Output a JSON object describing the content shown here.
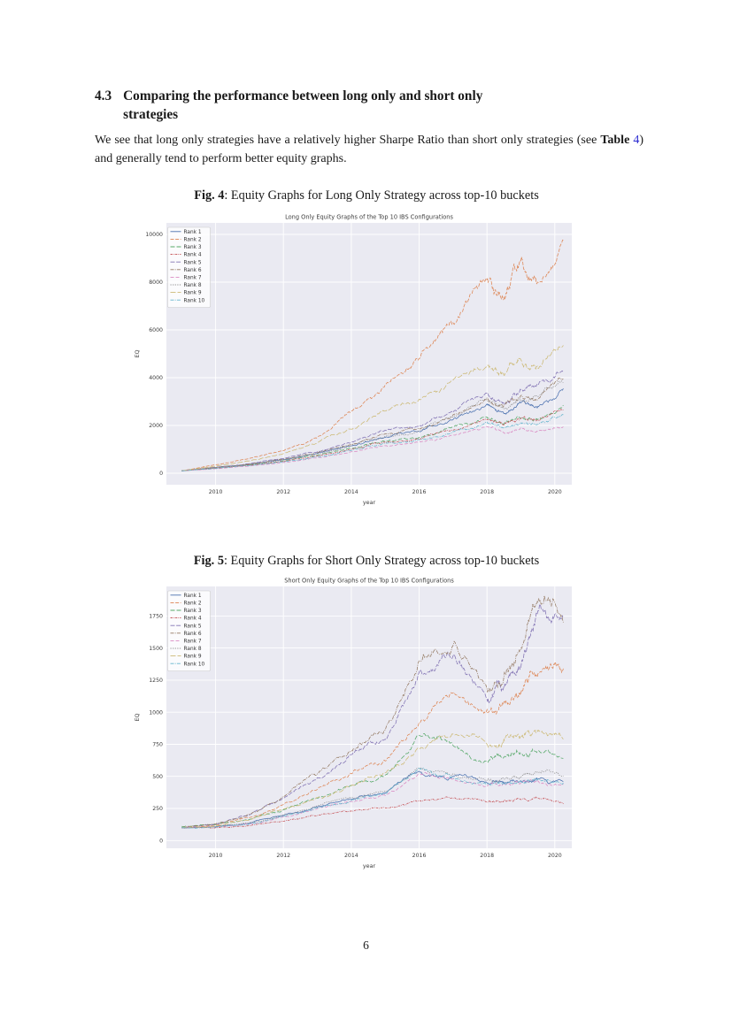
{
  "page": {
    "number": "6"
  },
  "section": {
    "number": "4.3",
    "title_line1": "Comparing the performance between long only and short only",
    "title_line2": "strategies",
    "body": {
      "p1": "We see that long only strategies have a relatively higher Sharpe Ratio than short only strategies (see ",
      "table_label": "Table",
      "table_num": "4",
      "p2": ") and generally tend to perform better equity graphs."
    }
  },
  "figures": [
    {
      "label": "Fig. 4",
      "caption": ": Equity Graphs for Long Only Strategy across top-10 buckets"
    },
    {
      "label": "Fig. 5",
      "caption": ": Equity Graphs for Short Only Strategy across top-10 buckets"
    }
  ],
  "colors": {
    "plot_bg": "#eaeaf2",
    "grid": "#ffffff",
    "link": "#2a2ad0",
    "chart_text": "#3d3d3d"
  },
  "chart_data": [
    {
      "type": "line",
      "title": "Long Only Equity Graphs of the Top 10 IBS Configurations",
      "xlabel": "year",
      "ylabel": "EQ",
      "xlim": [
        2008.55,
        2020.5
      ],
      "ylim": [
        -480,
        10480
      ],
      "xticks": [
        2010,
        2012,
        2014,
        2016,
        2018,
        2020
      ],
      "yticks": [
        0,
        2000,
        4000,
        6000,
        8000,
        10000
      ],
      "grid": true,
      "legend_position": "upper left",
      "x": [
        2009,
        2010,
        2011,
        2012,
        2013,
        2014,
        2015,
        2016,
        2017,
        2018,
        2018.5,
        2019,
        2019.5,
        2020.25
      ],
      "series": [
        {
          "name": "Rank 1",
          "color": "#4c72b0",
          "dash": "none",
          "y": [
            100,
            240,
            380,
            570,
            830,
            1150,
            1500,
            1750,
            2250,
            2900,
            2500,
            2950,
            2800,
            3550
          ]
        },
        {
          "name": "Rank 2",
          "color": "#dd8452",
          "dash": "4,1.6",
          "y": [
            100,
            350,
            620,
            950,
            1500,
            2600,
            3700,
            4800,
            6300,
            8100,
            7300,
            8900,
            8000,
            9750
          ]
        },
        {
          "name": "Rank 3",
          "color": "#55a868",
          "dash": "5,2",
          "y": [
            100,
            220,
            350,
            520,
            760,
            1050,
            1350,
            1500,
            1950,
            2350,
            2050,
            2300,
            2250,
            2850
          ]
        },
        {
          "name": "Rank 4",
          "color": "#c44e52",
          "dash": "2.5,1,0.8,1",
          "y": [
            100,
            210,
            340,
            500,
            730,
            1000,
            1300,
            1450,
            1800,
            2250,
            2000,
            2300,
            2200,
            2650
          ]
        },
        {
          "name": "Rank 5",
          "color": "#8172b3",
          "dash": "5,1.6",
          "y": [
            100,
            250,
            400,
            620,
            900,
            1300,
            1800,
            1950,
            2550,
            3350,
            2900,
            3500,
            3700,
            4350
          ]
        },
        {
          "name": "Rank 6",
          "color": "#937860",
          "dash": "4,1.2,1,1.2",
          "y": [
            100,
            240,
            380,
            590,
            860,
            1220,
            1650,
            1850,
            2450,
            3150,
            2800,
            3250,
            3100,
            3950
          ]
        },
        {
          "name": "Rank 7",
          "color": "#da8bc3",
          "dash": "4,2",
          "y": [
            100,
            190,
            300,
            450,
            650,
            900,
            1150,
            1300,
            1600,
            1950,
            1700,
            1900,
            1750,
            1950
          ]
        },
        {
          "name": "Rank 8",
          "color": "#8c8c8c",
          "dash": "1.2,1.4",
          "y": [
            100,
            230,
            370,
            560,
            820,
            1150,
            1550,
            1800,
            2350,
            3050,
            2700,
            3050,
            3200,
            3800
          ]
        },
        {
          "name": "Rank 9",
          "color": "#ccb974",
          "dash": "6,2",
          "y": [
            100,
            300,
            520,
            820,
            1280,
            1850,
            2600,
            3100,
            3900,
            4450,
            4100,
            4750,
            4400,
            5350
          ]
        },
        {
          "name": "Rank 10",
          "color": "#64b5cd",
          "dash": "4,1.2,1,1.2",
          "y": [
            100,
            200,
            320,
            480,
            700,
            960,
            1250,
            1400,
            1750,
            2150,
            1900,
            2100,
            2050,
            2450
          ]
        }
      ]
    },
    {
      "type": "line",
      "title": "Short Only Equity Graphs of the Top 10 IBS Configurations",
      "xlabel": "year",
      "ylabel": "EQ",
      "xlim": [
        2008.55,
        2020.5
      ],
      "ylim": [
        -60,
        1980
      ],
      "xticks": [
        2010,
        2012,
        2014,
        2016,
        2018,
        2020
      ],
      "yticks": [
        0,
        250,
        500,
        750,
        1000,
        1250,
        1500,
        1750
      ],
      "grid": true,
      "legend_position": "upper left",
      "x": [
        2009,
        2010,
        2011,
        2012,
        2013,
        2014,
        2015,
        2016,
        2017,
        2018,
        2018.5,
        2019,
        2019.5,
        2020.25
      ],
      "series": [
        {
          "name": "Rank 1",
          "color": "#4c72b0",
          "dash": "none",
          "y": [
            100,
            108,
            135,
            195,
            260,
            320,
            370,
            540,
            500,
            450,
            455,
            465,
            480,
            460
          ]
        },
        {
          "name": "Rank 2",
          "color": "#dd8452",
          "dash": "4,1.6",
          "y": [
            100,
            120,
            180,
            280,
            400,
            520,
            620,
            920,
            1150,
            1020,
            1080,
            1150,
            1300,
            1340
          ]
        },
        {
          "name": "Rank 3",
          "color": "#55a868",
          "dash": "5,2",
          "y": [
            110,
            125,
            165,
            240,
            330,
            430,
            510,
            820,
            740,
            620,
            650,
            680,
            700,
            640
          ]
        },
        {
          "name": "Rank 4",
          "color": "#c44e52",
          "dash": "2.5,1,0.8,1",
          "y": [
            100,
            100,
            115,
            150,
            195,
            230,
            255,
            310,
            330,
            300,
            310,
            320,
            330,
            285
          ]
        },
        {
          "name": "Rank 5",
          "color": "#8172b3",
          "dash": "5,1.6",
          "y": [
            100,
            128,
            200,
            330,
            490,
            670,
            790,
            1310,
            1440,
            1100,
            1200,
            1350,
            1790,
            1740
          ]
        },
        {
          "name": "Rank 6",
          "color": "#937860",
          "dash": "4,1.2,1,1.2",
          "y": [
            100,
            130,
            205,
            340,
            520,
            700,
            860,
            1400,
            1520,
            1180,
            1280,
            1500,
            1860,
            1700
          ]
        },
        {
          "name": "Rank 7",
          "color": "#da8bc3",
          "dash": "4,2",
          "y": [
            100,
            105,
            130,
            185,
            250,
            305,
            350,
            520,
            480,
            430,
            440,
            450,
            465,
            440
          ]
        },
        {
          "name": "Rank 8",
          "color": "#8c8c8c",
          "dash": "1.2,1.4",
          "y": [
            100,
            110,
            140,
            200,
            270,
            335,
            385,
            560,
            520,
            470,
            480,
            490,
            530,
            505
          ]
        },
        {
          "name": "Rank 9",
          "color": "#ccb974",
          "dash": "6,2",
          "y": [
            100,
            115,
            160,
            245,
            335,
            430,
            530,
            720,
            830,
            750,
            790,
            800,
            850,
            790
          ]
        },
        {
          "name": "Rank 10",
          "color": "#64b5cd",
          "dash": "4,1.2,1,1.2",
          "y": [
            100,
            105,
            130,
            190,
            255,
            312,
            362,
            570,
            490,
            440,
            450,
            460,
            475,
            450
          ]
        }
      ]
    }
  ]
}
